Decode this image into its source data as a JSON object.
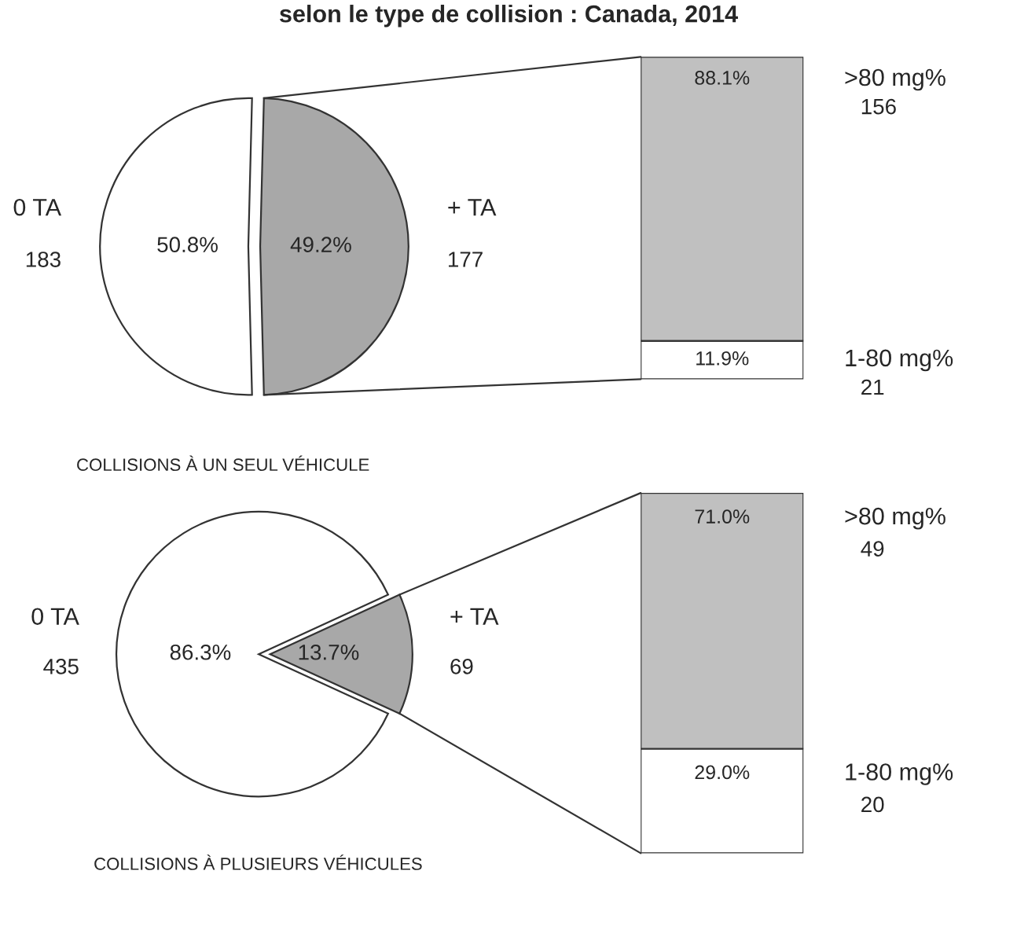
{
  "chart_data": [
    {
      "type": "pie",
      "title": "selon le type de collision : Canada, 2014",
      "categories": [
        "0 TA",
        "+ TA"
      ],
      "values": [
        50.8,
        49.2
      ],
      "colors": [
        "#ffffff",
        "#a8a8a8"
      ],
      "value_labels": [
        "50.8%",
        "49.2%"
      ],
      "annotations": [
        "183",
        "177",
        "COLLISIONS À UN SEUL VÉHICULE"
      ]
    },
    {
      "type": "bar",
      "stacked": true,
      "categories": [
        null
      ],
      "series": [
        {
          "name": "1-80 mg%",
          "color": "#ffffff",
          "values": [
            11.9
          ],
          "value_labels": [
            "11.9%"
          ]
        },
        {
          "name": ">80 mg%",
          "color": "#c0c0c0",
          "values": [
            88.1
          ],
          "value_labels": [
            "88.1%"
          ]
        }
      ],
      "tick_labels": false,
      "annotations": [
        "21",
        "156"
      ]
    },
    {
      "type": "pie",
      "categories": [
        "0 TA",
        "+ TA"
      ],
      "values": [
        86.3,
        13.7
      ],
      "colors": [
        "#ffffff",
        "#a8a8a8"
      ],
      "value_labels": [
        "86.3%",
        "13.7%"
      ],
      "annotations": [
        "435",
        "69",
        "COLLISIONS À PLUSIEURS VÉHICULES"
      ]
    },
    {
      "type": "bar",
      "stacked": true,
      "categories": [
        null
      ],
      "series": [
        {
          "name": "1-80 mg%",
          "color": "#ffffff",
          "values": [
            29.0
          ],
          "value_labels": [
            "29.0%"
          ]
        },
        {
          "name": ">80 mg%",
          "color": "#c0c0c0",
          "values": [
            71.0
          ],
          "value_labels": [
            "71.0%"
          ]
        }
      ],
      "tick_labels": false,
      "annotations": [
        "20",
        "49"
      ]
    }
  ]
}
